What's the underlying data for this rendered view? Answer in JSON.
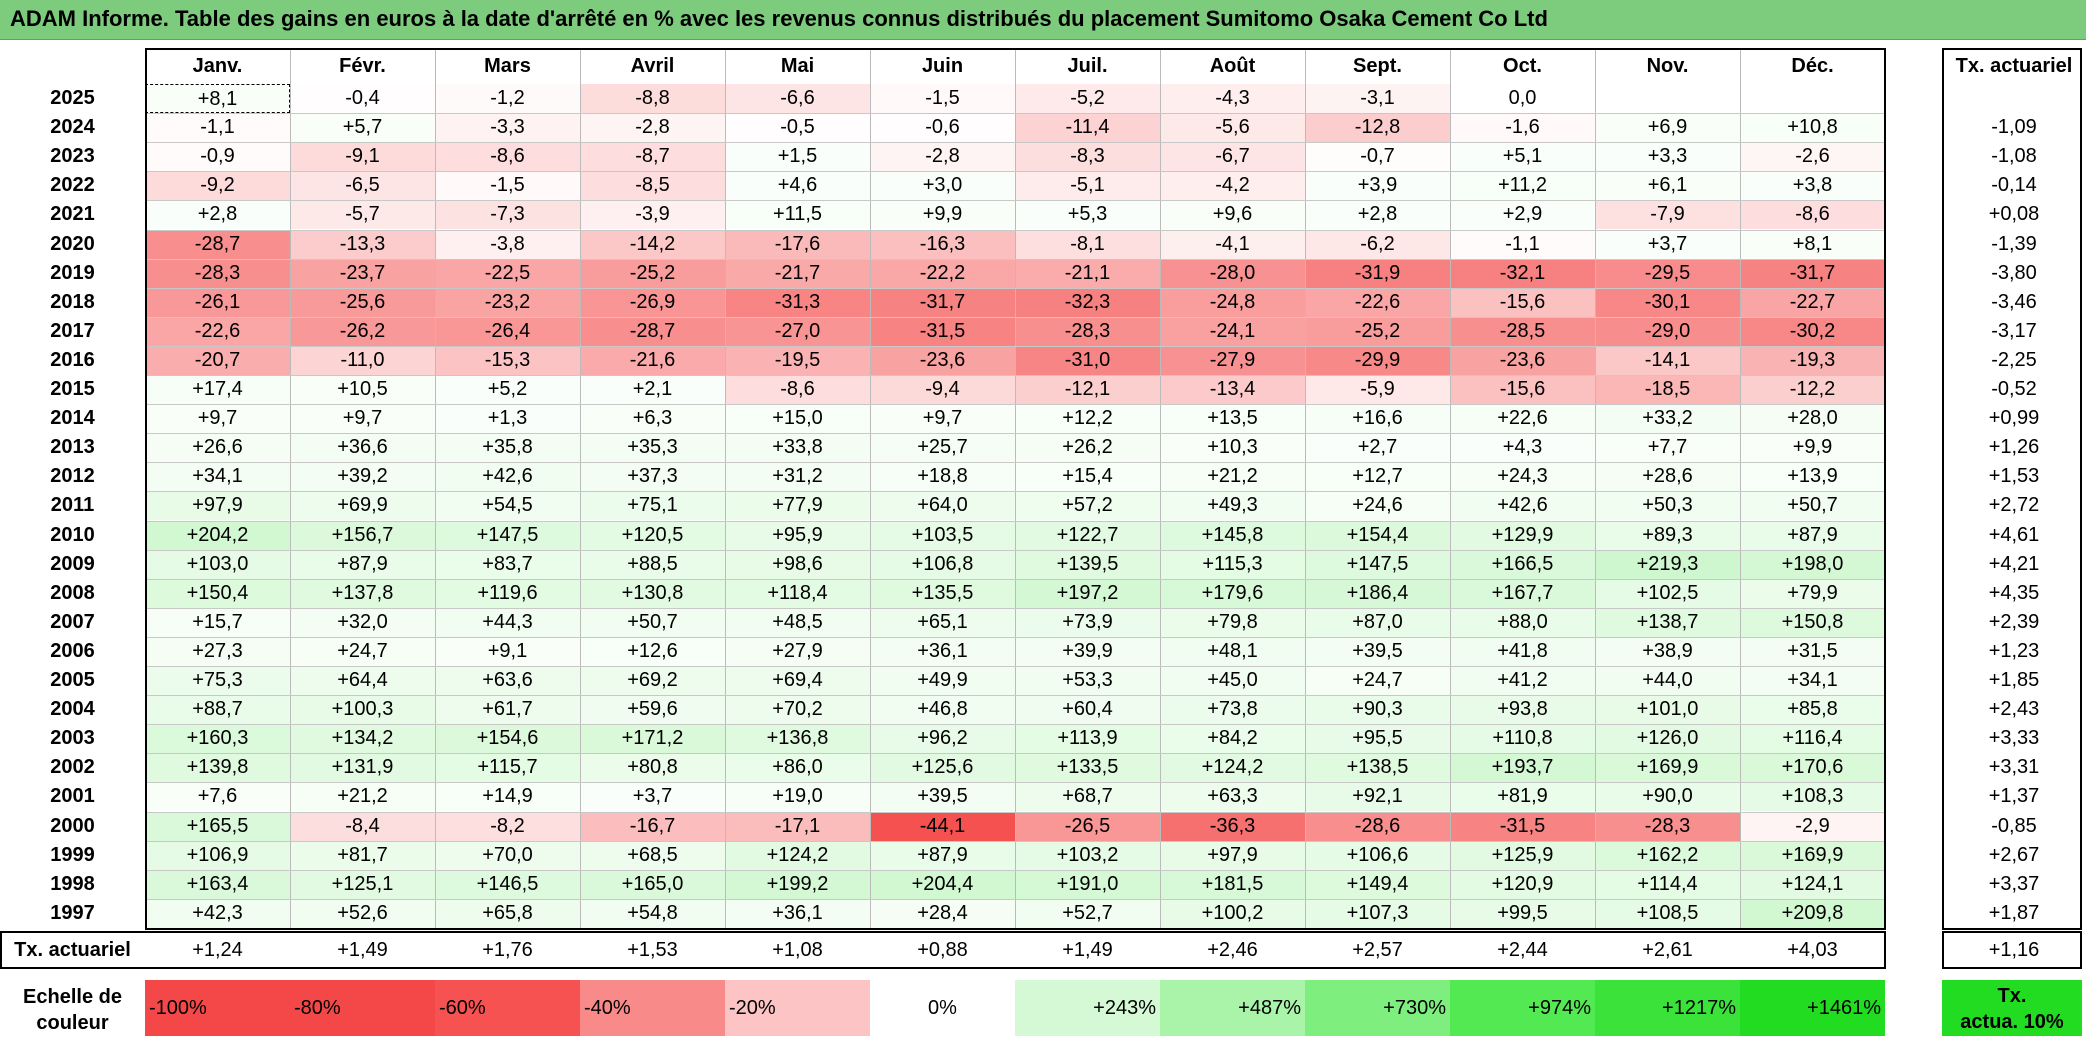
{
  "title": "ADAM Informe. Table des gains en euros à la date d'arrêté en % avec les revenus connus distribués du placement Sumitomo Osaka Cement Co Ltd",
  "months": [
    "Janv.",
    "Févr.",
    "Mars",
    "Avril",
    "Mai",
    "Juin",
    "Juil.",
    "Août",
    "Sept.",
    "Oct.",
    "Nov.",
    "Déc."
  ],
  "annual_header": "Tx. actuariel",
  "rows": [
    {
      "year": "2025",
      "vals": [
        "+8,1",
        "-0,4",
        "-1,2",
        "-8,8",
        "-6,6",
        "-1,5",
        "-5,2",
        "-4,3",
        "-3,1",
        "0,0",
        "",
        ""
      ],
      "annual": ""
    },
    {
      "year": "2024",
      "vals": [
        "-1,1",
        "+5,7",
        "-3,3",
        "-2,8",
        "-0,5",
        "-0,6",
        "-11,4",
        "-5,6",
        "-12,8",
        "-1,6",
        "+6,9",
        "+10,8"
      ],
      "annual": "-1,09"
    },
    {
      "year": "2023",
      "vals": [
        "-0,9",
        "-9,1",
        "-8,6",
        "-8,7",
        "+1,5",
        "-2,8",
        "-8,3",
        "-6,7",
        "-0,7",
        "+5,1",
        "+3,3",
        "-2,6"
      ],
      "annual": "-1,08"
    },
    {
      "year": "2022",
      "vals": [
        "-9,2",
        "-6,5",
        "-1,5",
        "-8,5",
        "+4,6",
        "+3,0",
        "-5,1",
        "-4,2",
        "+3,9",
        "+11,2",
        "+6,1",
        "+3,8"
      ],
      "annual": "-0,14"
    },
    {
      "year": "2021",
      "vals": [
        "+2,8",
        "-5,7",
        "-7,3",
        "-3,9",
        "+11,5",
        "+9,9",
        "+5,3",
        "+9,6",
        "+2,8",
        "+2,9",
        "-7,9",
        "-8,6"
      ],
      "annual": "+0,08"
    },
    {
      "year": "2020",
      "vals": [
        "-28,7",
        "-13,3",
        "-3,8",
        "-14,2",
        "-17,6",
        "-16,3",
        "-8,1",
        "-4,1",
        "-6,2",
        "-1,1",
        "+3,7",
        "+8,1"
      ],
      "annual": "-1,39"
    },
    {
      "year": "2019",
      "vals": [
        "-28,3",
        "-23,7",
        "-22,5",
        "-25,2",
        "-21,7",
        "-22,2",
        "-21,1",
        "-28,0",
        "-31,9",
        "-32,1",
        "-29,5",
        "-31,7"
      ],
      "annual": "-3,80"
    },
    {
      "year": "2018",
      "vals": [
        "-26,1",
        "-25,6",
        "-23,2",
        "-26,9",
        "-31,3",
        "-31,7",
        "-32,3",
        "-24,8",
        "-22,6",
        "-15,6",
        "-30,1",
        "-22,7"
      ],
      "annual": "-3,46"
    },
    {
      "year": "2017",
      "vals": [
        "-22,6",
        "-26,2",
        "-26,4",
        "-28,7",
        "-27,0",
        "-31,5",
        "-28,3",
        "-24,1",
        "-25,2",
        "-28,5",
        "-29,0",
        "-30,2"
      ],
      "annual": "-3,17"
    },
    {
      "year": "2016",
      "vals": [
        "-20,7",
        "-11,0",
        "-15,3",
        "-21,6",
        "-19,5",
        "-23,6",
        "-31,0",
        "-27,9",
        "-29,9",
        "-23,6",
        "-14,1",
        "-19,3"
      ],
      "annual": "-2,25"
    },
    {
      "year": "2015",
      "vals": [
        "+17,4",
        "+10,5",
        "+5,2",
        "+2,1",
        "-8,6",
        "-9,4",
        "-12,1",
        "-13,4",
        "-5,9",
        "-15,6",
        "-18,5",
        "-12,2"
      ],
      "annual": "-0,52"
    },
    {
      "year": "2014",
      "vals": [
        "+9,7",
        "+9,7",
        "+1,3",
        "+6,3",
        "+15,0",
        "+9,7",
        "+12,2",
        "+13,5",
        "+16,6",
        "+22,6",
        "+33,2",
        "+28,0"
      ],
      "annual": "+0,99"
    },
    {
      "year": "2013",
      "vals": [
        "+26,6",
        "+36,6",
        "+35,8",
        "+35,3",
        "+33,8",
        "+25,7",
        "+26,2",
        "+10,3",
        "+2,7",
        "+4,3",
        "+7,7",
        "+9,9"
      ],
      "annual": "+1,26"
    },
    {
      "year": "2012",
      "vals": [
        "+34,1",
        "+39,2",
        "+42,6",
        "+37,3",
        "+31,2",
        "+18,8",
        "+15,4",
        "+21,2",
        "+12,7",
        "+24,3",
        "+28,6",
        "+13,9"
      ],
      "annual": "+1,53"
    },
    {
      "year": "2011",
      "vals": [
        "+97,9",
        "+69,9",
        "+54,5",
        "+75,1",
        "+77,9",
        "+64,0",
        "+57,2",
        "+49,3",
        "+24,6",
        "+42,6",
        "+50,3",
        "+50,7"
      ],
      "annual": "+2,72"
    },
    {
      "year": "2010",
      "vals": [
        "+204,2",
        "+156,7",
        "+147,5",
        "+120,5",
        "+95,9",
        "+103,5",
        "+122,7",
        "+145,8",
        "+154,4",
        "+129,9",
        "+89,3",
        "+87,9"
      ],
      "annual": "+4,61"
    },
    {
      "year": "2009",
      "vals": [
        "+103,0",
        "+87,9",
        "+83,7",
        "+88,5",
        "+98,6",
        "+106,8",
        "+139,5",
        "+115,3",
        "+147,5",
        "+166,5",
        "+219,3",
        "+198,0"
      ],
      "annual": "+4,21"
    },
    {
      "year": "2008",
      "vals": [
        "+150,4",
        "+137,8",
        "+119,6",
        "+130,8",
        "+118,4",
        "+135,5",
        "+197,2",
        "+179,6",
        "+186,4",
        "+167,7",
        "+102,5",
        "+79,9"
      ],
      "annual": "+4,35"
    },
    {
      "year": "2007",
      "vals": [
        "+15,7",
        "+32,0",
        "+44,3",
        "+50,7",
        "+48,5",
        "+65,1",
        "+73,9",
        "+79,8",
        "+87,0",
        "+88,0",
        "+138,7",
        "+150,8"
      ],
      "annual": "+2,39"
    },
    {
      "year": "2006",
      "vals": [
        "+27,3",
        "+24,7",
        "+9,1",
        "+12,6",
        "+27,9",
        "+36,1",
        "+39,9",
        "+48,1",
        "+39,5",
        "+41,8",
        "+38,9",
        "+31,5"
      ],
      "annual": "+1,23"
    },
    {
      "year": "2005",
      "vals": [
        "+75,3",
        "+64,4",
        "+63,6",
        "+69,2",
        "+69,4",
        "+49,9",
        "+53,3",
        "+45,0",
        "+24,7",
        "+41,2",
        "+44,0",
        "+34,1"
      ],
      "annual": "+1,85"
    },
    {
      "year": "2004",
      "vals": [
        "+88,7",
        "+100,3",
        "+61,7",
        "+59,6",
        "+70,2",
        "+46,8",
        "+60,4",
        "+73,8",
        "+90,3",
        "+93,8",
        "+101,0",
        "+85,8"
      ],
      "annual": "+2,43"
    },
    {
      "year": "2003",
      "vals": [
        "+160,3",
        "+134,2",
        "+154,6",
        "+171,2",
        "+136,8",
        "+96,2",
        "+113,9",
        "+84,2",
        "+95,5",
        "+110,8",
        "+126,0",
        "+116,4"
      ],
      "annual": "+3,33"
    },
    {
      "year": "2002",
      "vals": [
        "+139,8",
        "+131,9",
        "+115,7",
        "+80,8",
        "+86,0",
        "+125,6",
        "+133,5",
        "+124,2",
        "+138,5",
        "+193,7",
        "+169,9",
        "+170,6"
      ],
      "annual": "+3,31"
    },
    {
      "year": "2001",
      "vals": [
        "+7,6",
        "+21,2",
        "+14,9",
        "+3,7",
        "+19,0",
        "+39,5",
        "+68,7",
        "+63,3",
        "+92,1",
        "+81,9",
        "+90,0",
        "+108,3"
      ],
      "annual": "+1,37"
    },
    {
      "year": "2000",
      "vals": [
        "+165,5",
        "-8,4",
        "-8,2",
        "-16,7",
        "-17,1",
        "-44,1",
        "-26,5",
        "-36,3",
        "-28,6",
        "-31,5",
        "-28,3",
        "-2,9"
      ],
      "annual": "-0,85"
    },
    {
      "year": "1999",
      "vals": [
        "+106,9",
        "+81,7",
        "+70,0",
        "+68,5",
        "+124,2",
        "+87,9",
        "+103,2",
        "+97,9",
        "+106,6",
        "+125,9",
        "+162,2",
        "+169,9"
      ],
      "annual": "+2,67"
    },
    {
      "year": "1998",
      "vals": [
        "+163,4",
        "+125,1",
        "+146,5",
        "+165,0",
        "+199,2",
        "+204,4",
        "+191,0",
        "+181,5",
        "+149,4",
        "+120,9",
        "+114,4",
        "+124,1"
      ],
      "annual": "+3,37"
    },
    {
      "year": "1997",
      "vals": [
        "+42,3",
        "+52,6",
        "+65,8",
        "+54,8",
        "+36,1",
        "+28,4",
        "+52,7",
        "+100,2",
        "+107,3",
        "+99,5",
        "+108,5",
        "+209,8"
      ],
      "annual": "+1,87"
    }
  ],
  "summary": {
    "label": "Tx. actuariel",
    "vals": [
      "+1,24",
      "+1,49",
      "+1,76",
      "+1,53",
      "+1,08",
      "+0,88",
      "+1,49",
      "+2,46",
      "+2,57",
      "+2,44",
      "+2,61",
      "+4,03"
    ],
    "annual": "+1,16"
  },
  "scale": {
    "label_line1": "Echelle de",
    "label_line2": "couleur",
    "items": [
      {
        "text": "-100%",
        "color": "#f44848",
        "align": "left"
      },
      {
        "text": "-80%",
        "color": "#f44848",
        "align": "left"
      },
      {
        "text": "-60%",
        "color": "#f65252",
        "align": "left"
      },
      {
        "text": "-40%",
        "color": "#f98a8a",
        "align": "left"
      },
      {
        "text": "-20%",
        "color": "#fcc4c4",
        "align": "left"
      },
      {
        "text": "0%",
        "color": "#ffffff",
        "align": "center"
      },
      {
        "text": "+243%",
        "color": "#d4f9d4",
        "align": "right"
      },
      {
        "text": "+487%",
        "color": "#a9f4a9",
        "align": "right"
      },
      {
        "text": "+730%",
        "color": "#7eef7e",
        "align": "right"
      },
      {
        "text": "+974%",
        "color": "#53e953",
        "align": "right"
      },
      {
        "text": "+1217%",
        "color": "#3ae23a",
        "align": "right"
      },
      {
        "text": "+1461%",
        "color": "#22dc22",
        "align": "right"
      }
    ],
    "tx_label_line1": "Tx.",
    "tx_label_line2": "actua. 10%",
    "tx_color": "#22dc22"
  },
  "colors": {
    "title_bg": "#7dcb7d",
    "neg_max": "#f44848",
    "pos_max": "#22dc22"
  }
}
